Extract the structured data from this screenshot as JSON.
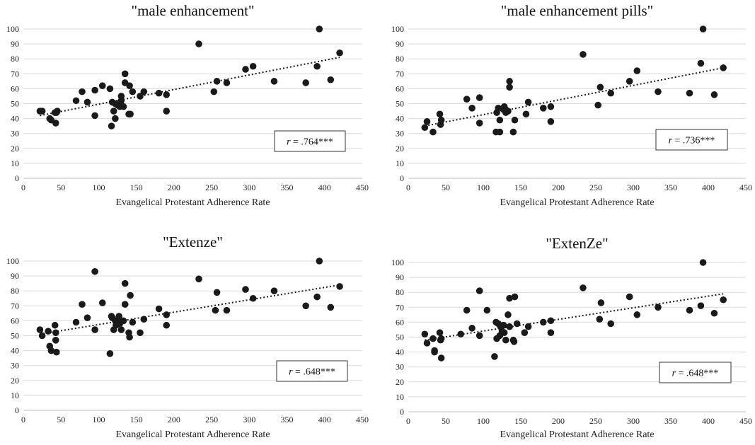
{
  "chart_data": [
    {
      "type": "scatter",
      "title": "\"male enhancement\"",
      "xlabel": "Evangelical Protestant Adherence Rate",
      "ylabel": "",
      "xlim": [
        0,
        450
      ],
      "ylim": [
        0,
        100
      ],
      "xticks": [
        0,
        50,
        100,
        150,
        200,
        250,
        300,
        350,
        400,
        450
      ],
      "yticks": [
        0,
        10,
        20,
        30,
        40,
        50,
        60,
        70,
        80,
        90,
        100
      ],
      "grid": true,
      "trendline": {
        "x1": 22,
        "y1": 42,
        "x2": 420,
        "y2": 81
      },
      "annotation": {
        "prefix": "r",
        "text": " = .764***"
      },
      "points": [
        [
          22,
          45
        ],
        [
          25,
          45
        ],
        [
          35,
          40
        ],
        [
          37,
          39
        ],
        [
          42,
          44
        ],
        [
          43,
          37
        ],
        [
          45,
          45
        ],
        [
          44,
          44
        ],
        [
          70,
          52
        ],
        [
          78,
          58
        ],
        [
          85,
          51
        ],
        [
          95,
          59
        ],
        [
          95,
          42
        ],
        [
          105,
          62
        ],
        [
          115,
          60
        ],
        [
          117,
          35
        ],
        [
          118,
          51
        ],
        [
          120,
          45
        ],
        [
          122,
          40
        ],
        [
          122,
          50
        ],
        [
          125,
          49
        ],
        [
          128,
          48
        ],
        [
          130,
          55
        ],
        [
          130,
          52
        ],
        [
          133,
          48
        ],
        [
          135,
          70
        ],
        [
          135,
          64
        ],
        [
          140,
          43
        ],
        [
          141,
          62
        ],
        [
          142,
          43
        ],
        [
          145,
          58
        ],
        [
          155,
          55
        ],
        [
          160,
          58
        ],
        [
          180,
          57
        ],
        [
          190,
          45
        ],
        [
          190,
          56
        ],
        [
          233,
          90
        ],
        [
          253,
          58
        ],
        [
          257,
          65
        ],
        [
          270,
          64
        ],
        [
          295,
          73
        ],
        [
          305,
          75
        ],
        [
          333,
          65
        ],
        [
          375,
          64
        ],
        [
          390,
          75
        ],
        [
          393,
          100
        ],
        [
          408,
          66
        ],
        [
          420,
          84
        ]
      ]
    },
    {
      "type": "scatter",
      "title": "\"male enhancement pills\"",
      "xlabel": "Evangelical Protestant Adherence Rate",
      "ylabel": "",
      "xlim": [
        0,
        450
      ],
      "ylim": [
        0,
        100
      ],
      "xticks": [
        0,
        50,
        100,
        150,
        200,
        250,
        300,
        350,
        400,
        450
      ],
      "yticks": [
        0,
        10,
        20,
        30,
        40,
        50,
        60,
        70,
        80,
        90,
        100
      ],
      "grid": true,
      "trendline": {
        "x1": 22,
        "y1": 35,
        "x2": 420,
        "y2": 74
      },
      "annotation": {
        "prefix": "r",
        "text": " = .736***"
      },
      "points": [
        [
          22,
          34
        ],
        [
          25,
          38
        ],
        [
          33,
          31
        ],
        [
          42,
          43
        ],
        [
          43,
          36
        ],
        [
          44,
          39
        ],
        [
          78,
          53
        ],
        [
          85,
          47
        ],
        [
          95,
          54
        ],
        [
          95,
          37
        ],
        [
          117,
          31
        ],
        [
          118,
          44
        ],
        [
          120,
          47
        ],
        [
          122,
          31
        ],
        [
          122,
          39
        ],
        [
          127,
          46
        ],
        [
          128,
          48
        ],
        [
          130,
          46
        ],
        [
          130,
          44
        ],
        [
          133,
          45
        ],
        [
          135,
          65
        ],
        [
          135,
          61
        ],
        [
          140,
          31
        ],
        [
          142,
          39
        ],
        [
          157,
          43
        ],
        [
          160,
          51
        ],
        [
          180,
          47
        ],
        [
          190,
          48
        ],
        [
          190,
          38
        ],
        [
          233,
          83
        ],
        [
          253,
          49
        ],
        [
          256,
          61
        ],
        [
          270,
          57
        ],
        [
          295,
          65
        ],
        [
          305,
          72
        ],
        [
          333,
          58
        ],
        [
          375,
          57
        ],
        [
          390,
          77
        ],
        [
          393,
          100
        ],
        [
          408,
          56
        ],
        [
          420,
          74
        ]
      ]
    },
    {
      "type": "scatter",
      "title": "\"Extenze\"",
      "xlabel": "Evangelical Protestant Adherence Rate",
      "ylabel": "",
      "xlim": [
        0,
        450
      ],
      "ylim": [
        0,
        100
      ],
      "xticks": [
        0,
        50,
        100,
        150,
        200,
        250,
        300,
        350,
        400,
        450
      ],
      "yticks": [
        0,
        10,
        20,
        30,
        40,
        50,
        60,
        70,
        80,
        90,
        100
      ],
      "grid": true,
      "trendline": {
        "x1": 22,
        "y1": 51,
        "x2": 420,
        "y2": 84
      },
      "annotation": {
        "prefix": "r",
        "text": " = .648***"
      },
      "points": [
        [
          22,
          54
        ],
        [
          25,
          50
        ],
        [
          33,
          53
        ],
        [
          35,
          43
        ],
        [
          37,
          40
        ],
        [
          42,
          57
        ],
        [
          43,
          52
        ],
        [
          43,
          47
        ],
        [
          44,
          39
        ],
        [
          70,
          59
        ],
        [
          78,
          71
        ],
        [
          85,
          62
        ],
        [
          95,
          54
        ],
        [
          95,
          93
        ],
        [
          105,
          72
        ],
        [
          115,
          38
        ],
        [
          117,
          63
        ],
        [
          118,
          62
        ],
        [
          120,
          54
        ],
        [
          122,
          60
        ],
        [
          123,
          57
        ],
        [
          125,
          60
        ],
        [
          127,
          63
        ],
        [
          128,
          58
        ],
        [
          130,
          54
        ],
        [
          133,
          60
        ],
        [
          135,
          71
        ],
        [
          135,
          85
        ],
        [
          140,
          52
        ],
        [
          141,
          49
        ],
        [
          142,
          77
        ],
        [
          145,
          59
        ],
        [
          155,
          52
        ],
        [
          160,
          61
        ],
        [
          180,
          68
        ],
        [
          190,
          64
        ],
        [
          190,
          57
        ],
        [
          233,
          88
        ],
        [
          255,
          67
        ],
        [
          257,
          79
        ],
        [
          270,
          67
        ],
        [
          295,
          81
        ],
        [
          305,
          75
        ],
        [
          333,
          80
        ],
        [
          375,
          70
        ],
        [
          390,
          76
        ],
        [
          393,
          100
        ],
        [
          408,
          69
        ],
        [
          420,
          83
        ]
      ]
    },
    {
      "type": "scatter",
      "title": "\"ExtenZe\"",
      "xlabel": "Evangelical Protestant Adherence Rate",
      "ylabel": "",
      "xlim": [
        0,
        450
      ],
      "ylim": [
        0,
        100
      ],
      "xticks": [
        0,
        50,
        100,
        150,
        200,
        250,
        300,
        350,
        400,
        450
      ],
      "yticks": [
        0,
        10,
        20,
        30,
        40,
        50,
        60,
        70,
        80,
        90,
        100
      ],
      "grid": true,
      "trendline": {
        "x1": 22,
        "y1": 48,
        "x2": 420,
        "y2": 79
      },
      "annotation": {
        "prefix": "r",
        "text": " = .648***"
      },
      "points": [
        [
          22,
          52
        ],
        [
          25,
          46
        ],
        [
          33,
          49
        ],
        [
          35,
          41
        ],
        [
          35,
          40
        ],
        [
          42,
          53
        ],
        [
          43,
          48
        ],
        [
          44,
          49
        ],
        [
          44,
          36
        ],
        [
          70,
          52
        ],
        [
          78,
          68
        ],
        [
          85,
          56
        ],
        [
          95,
          51
        ],
        [
          95,
          81
        ],
        [
          105,
          68
        ],
        [
          115,
          37
        ],
        [
          117,
          60
        ],
        [
          118,
          49
        ],
        [
          120,
          59
        ],
        [
          122,
          51
        ],
        [
          123,
          57
        ],
        [
          125,
          54
        ],
        [
          127,
          58
        ],
        [
          128,
          53
        ],
        [
          130,
          48
        ],
        [
          133,
          65
        ],
        [
          135,
          76
        ],
        [
          135,
          57
        ],
        [
          140,
          48
        ],
        [
          141,
          47
        ],
        [
          142,
          77
        ],
        [
          145,
          59
        ],
        [
          155,
          53
        ],
        [
          160,
          57
        ],
        [
          180,
          60
        ],
        [
          190,
          61
        ],
        [
          190,
          53
        ],
        [
          233,
          83
        ],
        [
          255,
          62
        ],
        [
          257,
          73
        ],
        [
          270,
          59
        ],
        [
          295,
          77
        ],
        [
          305,
          65
        ],
        [
          333,
          70
        ],
        [
          375,
          68
        ],
        [
          390,
          71
        ],
        [
          393,
          100
        ],
        [
          408,
          66
        ],
        [
          420,
          75
        ]
      ]
    }
  ]
}
